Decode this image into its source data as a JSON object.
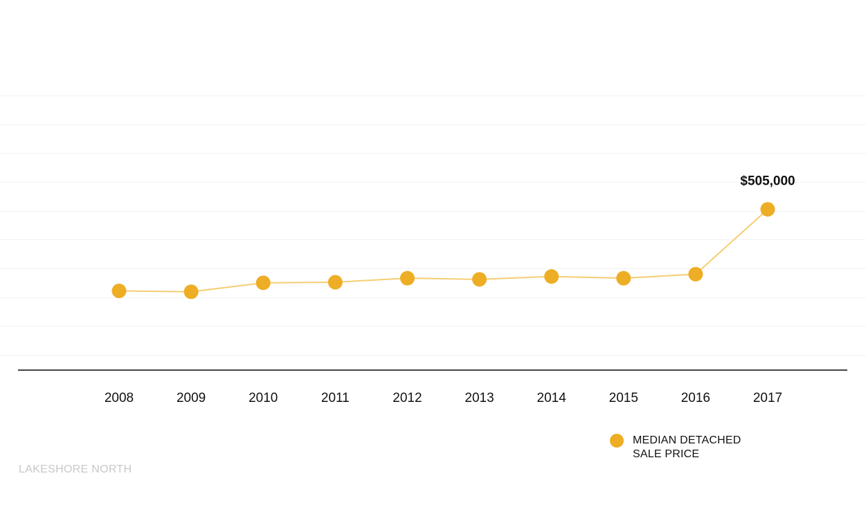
{
  "chart_data": {
    "type": "line",
    "categories": [
      "2008",
      "2009",
      "2010",
      "2011",
      "2012",
      "2013",
      "2014",
      "2015",
      "2016",
      "2017"
    ],
    "series": [
      {
        "name": "MEDIAN DETACHED SALE PRICE",
        "values": [
          222000,
          219000,
          250000,
          252000,
          266000,
          262000,
          272000,
          266000,
          280000,
          505000
        ]
      }
    ],
    "ylim": [
      0,
      900000
    ],
    "grid": true,
    "annotations": [
      {
        "category": "2017",
        "text": "$505,000"
      }
    ],
    "legend": {
      "position": "bottom-right",
      "lines": [
        "MEDIAN DETACHED",
        "SALE PRICE"
      ]
    },
    "colors": {
      "marker": "#EDAE25",
      "line": "#F6CD72",
      "grid": "#F2F2F2",
      "axis": "#444444"
    }
  },
  "footer": {
    "label": "LAKESHORE NORTH"
  }
}
